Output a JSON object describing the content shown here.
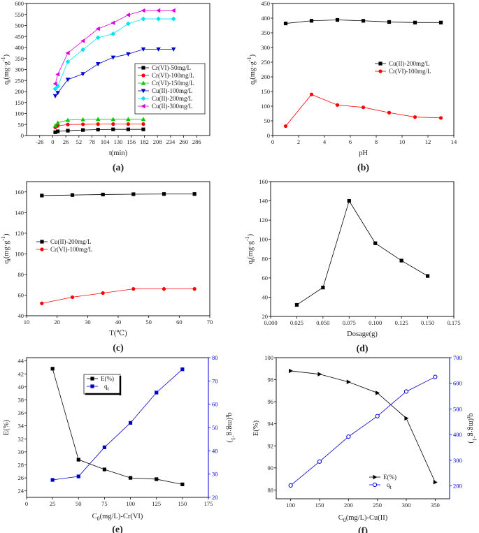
{
  "chart_data": [
    {
      "id": "a",
      "panel_label": "(a)",
      "type": "line",
      "xlabel": "t(min)",
      "ylabel": "q",
      "ylabel_sub": "t",
      "ylabel_unit": "(mg·g",
      "ylabel_sup": "-1",
      "ylabel_close": ")",
      "xlim": [
        -52,
        312
      ],
      "ylim": [
        0,
        600
      ],
      "xticks": [
        -26,
        0,
        26,
        52,
        78,
        104,
        130,
        156,
        182,
        208,
        234,
        260,
        286
      ],
      "yticks": [
        0,
        50,
        100,
        150,
        200,
        250,
        300,
        350,
        400,
        450,
        500,
        550,
        600
      ],
      "legend_position": "middle-right",
      "series": [
        {
          "name": "Cr(VI)-50mg/L",
          "color": "#000000",
          "marker": "square",
          "x": [
            5,
            10,
            30,
            60,
            90,
            120,
            150,
            180
          ],
          "y": [
            15,
            19,
            22,
            25,
            27,
            28,
            28,
            28
          ]
        },
        {
          "name": "Cr(VI)-100mg/L",
          "color": "#ff0000",
          "marker": "circle",
          "x": [
            5,
            10,
            30,
            60,
            90,
            120,
            150,
            180
          ],
          "y": [
            37,
            44,
            50,
            51,
            52,
            52,
            52,
            52
          ]
        },
        {
          "name": "Cr(VI)-150mg/L",
          "color": "#00cc00",
          "marker": "triangle-up",
          "x": [
            5,
            10,
            30,
            60,
            90,
            120,
            150,
            180
          ],
          "y": [
            45,
            58,
            70,
            73,
            74,
            74,
            74,
            74
          ]
        },
        {
          "name": "Cu(II)-100mg/L",
          "color": "#0000cc",
          "marker": "triangle-down",
          "x": [
            5,
            10,
            30,
            60,
            90,
            120,
            150,
            180,
            210,
            240
          ],
          "y": [
            180,
            194,
            254,
            280,
            325,
            355,
            370,
            392,
            392,
            392
          ]
        },
        {
          "name": "Cu(II)-200mg/L",
          "color": "#00e5ee",
          "marker": "diamond",
          "x": [
            5,
            10,
            30,
            60,
            90,
            120,
            150,
            180,
            210,
            240
          ],
          "y": [
            212,
            224,
            335,
            390,
            445,
            462,
            508,
            530,
            530,
            530
          ]
        },
        {
          "name": "Cu(II)-300mg/L",
          "color": "#dd00dd",
          "marker": "triangle-left",
          "x": [
            5,
            10,
            30,
            60,
            90,
            120,
            150,
            180,
            210,
            240
          ],
          "y": [
            235,
            278,
            375,
            430,
            485,
            512,
            548,
            568,
            568,
            568
          ]
        }
      ]
    },
    {
      "id": "b",
      "panel_label": "(b)",
      "type": "line",
      "xlabel": "pH",
      "ylabel": "q",
      "ylabel_sub": "t",
      "ylabel_unit": "(mg·g",
      "ylabel_sup": "-1",
      "ylabel_close": ")",
      "xlim": [
        0,
        14
      ],
      "ylim": [
        0,
        450
      ],
      "xticks": [
        0,
        2,
        4,
        6,
        8,
        10,
        12,
        14
      ],
      "yticks": [
        0,
        50,
        100,
        150,
        200,
        250,
        300,
        350,
        400,
        450
      ],
      "legend_position": "middle-right",
      "series": [
        {
          "name": "Cu(II)-200mg/L",
          "color": "#000000",
          "marker": "square",
          "x": [
            1,
            3,
            5,
            7,
            9,
            11,
            13
          ],
          "y": [
            382,
            391,
            394,
            391,
            387,
            385,
            385
          ]
        },
        {
          "name": "Cr(VI)-100mg/L",
          "color": "#ff0000",
          "marker": "circle",
          "x": [
            1,
            3,
            5,
            7,
            9,
            11,
            13
          ],
          "y": [
            32,
            140,
            104,
            96,
            78,
            63,
            60
          ]
        }
      ]
    },
    {
      "id": "c",
      "panel_label": "(c)",
      "type": "line",
      "xlabel": "T(℃)",
      "ylabel": "q",
      "ylabel_sub": "t",
      "ylabel_unit": "(mg·g",
      "ylabel_sup": "-1",
      "ylabel_close": ")",
      "xlim": [
        10,
        70
      ],
      "ylim": [
        40,
        170
      ],
      "xticks": [
        10,
        20,
        30,
        40,
        50,
        60,
        70
      ],
      "yticks": [
        40,
        60,
        80,
        100,
        120,
        140,
        160
      ],
      "legend_position": "middle-left",
      "series": [
        {
          "name": "Cu(II)-200mg/L",
          "color": "#000000",
          "marker": "square",
          "x": [
            15,
            25,
            35,
            45,
            55,
            65
          ],
          "y": [
            156.5,
            157,
            157.5,
            157.8,
            158,
            158
          ]
        },
        {
          "name": "Cr(VI)-100mg/L",
          "color": "#ff0000",
          "marker": "circle",
          "x": [
            15,
            25,
            35,
            45,
            55,
            65
          ],
          "y": [
            52,
            58,
            62,
            66,
            66,
            66
          ]
        }
      ]
    },
    {
      "id": "d",
      "panel_label": "(d)",
      "type": "line",
      "xlabel": "Dosage(g)",
      "ylabel": "q",
      "ylabel_sub": "t",
      "ylabel_unit": "(mg·g",
      "ylabel_sup": "-1",
      "ylabel_close": ")",
      "xlim": [
        0,
        0.175
      ],
      "ylim": [
        20,
        160
      ],
      "xticks": [
        0.0,
        0.025,
        0.05,
        0.075,
        0.1,
        0.125,
        0.15,
        0.175
      ],
      "yticks": [
        20,
        40,
        60,
        80,
        100,
        120,
        140,
        160
      ],
      "series": [
        {
          "name": "",
          "color": "#000000",
          "marker": "square",
          "x": [
            0.025,
            0.05,
            0.075,
            0.1,
            0.125,
            0.15
          ],
          "y": [
            32,
            50,
            140,
            96,
            78,
            62
          ]
        }
      ]
    },
    {
      "id": "e",
      "panel_label": "(e)",
      "type": "line",
      "xlabel": "C",
      "xlabel_sub": "0",
      "xlabel_rest": "(mg/L)-Cr(VI)",
      "ylabel": "E(%)",
      "y2label": "q",
      "y2label_sub": "t",
      "y2label_unit": "(mg·g",
      "y2label_sup": "-1",
      "y2label_close": ")",
      "xlim": [
        0,
        175
      ],
      "ylim": [
        23,
        44.5
      ],
      "y2lim": [
        20,
        80
      ],
      "xticks": [
        0,
        25,
        50,
        75,
        100,
        125,
        150,
        175
      ],
      "yticks": [
        24,
        26,
        28,
        30,
        32,
        34,
        36,
        38,
        40,
        42,
        44
      ],
      "y2ticks": [
        20,
        30,
        40,
        50,
        60,
        70,
        80
      ],
      "legend_position": "top-center",
      "series": [
        {
          "name": "E(%)",
          "axis": "left",
          "color": "#000000",
          "marker": "square",
          "x": [
            25,
            50,
            75,
            100,
            125,
            150
          ],
          "y": [
            42.8,
            28.8,
            27.3,
            26.0,
            25.8,
            25.0
          ]
        },
        {
          "name": "q",
          "name_sub": "t",
          "axis": "right",
          "color": "#0000cc",
          "marker": "square",
          "x": [
            25,
            50,
            75,
            100,
            125,
            150
          ],
          "y": [
            27.5,
            29,
            41.5,
            52,
            65,
            75
          ]
        }
      ]
    },
    {
      "id": "f",
      "panel_label": "(f)",
      "type": "line",
      "xlabel": "C",
      "xlabel_sub": "0",
      "xlabel_rest": "(mg/L)-Cu(II)",
      "ylabel": "E(%)",
      "y2label": "q",
      "y2label_sub": "t",
      "y2label_unit": "(mg·g",
      "y2label_sup": "-1",
      "y2label_close": ")",
      "xlim": [
        75,
        375
      ],
      "ylim": [
        87.2,
        100
      ],
      "y2lim": [
        150,
        700
      ],
      "xticks": [
        100,
        150,
        200,
        250,
        300,
        350
      ],
      "yticks": [
        88,
        90,
        92,
        94,
        96,
        98,
        100
      ],
      "y2ticks": [
        200,
        300,
        400,
        500,
        600,
        700
      ],
      "legend_position": "bottom-right",
      "series": [
        {
          "name": "E(%)",
          "axis": "left",
          "color": "#000000",
          "marker": "triangle-right",
          "x": [
            100,
            150,
            200,
            250,
            300,
            350
          ],
          "y": [
            98.8,
            98.5,
            97.8,
            96.8,
            94.5,
            88.7
          ]
        },
        {
          "name": "q",
          "name_sub": "t",
          "axis": "right",
          "color": "#0000cc",
          "marker": "circle-open",
          "x": [
            100,
            150,
            200,
            250,
            300,
            350
          ],
          "y": [
            202,
            295,
            392,
            472,
            568,
            625
          ]
        }
      ]
    }
  ]
}
